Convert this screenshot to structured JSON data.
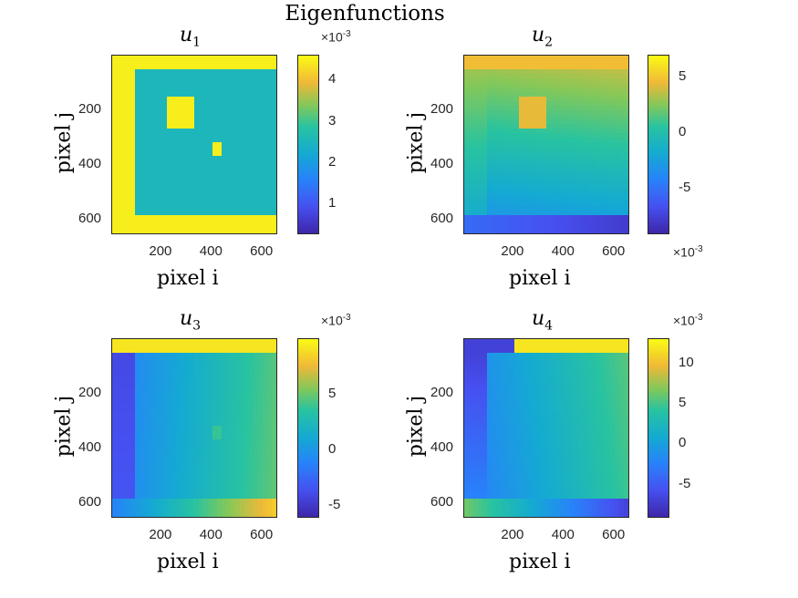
{
  "chart_data": {
    "title": "Eigenfunctions",
    "panels": [
      {
        "type": "heatmap",
        "title": "u",
        "subscript": "1",
        "xlabel": "pixel i",
        "ylabel": "pixel j",
        "xticks": [
          "200",
          "400",
          "600"
        ],
        "yticks": [
          "200",
          "400",
          "600"
        ],
        "xlim": [
          0,
          650
        ],
        "ylim": [
          0,
          650
        ],
        "colorbar_exponent": "×10",
        "colorbar_exponent_power": "-3",
        "colorbar_ticks": [
          "1",
          "2",
          "3",
          "4"
        ],
        "clim": [
          0.3,
          4.6
        ]
      },
      {
        "type": "heatmap",
        "title": "u",
        "subscript": "2",
        "xlabel": "pixel i",
        "ylabel": "pixel j",
        "xticks": [
          "200",
          "400",
          "600"
        ],
        "yticks": [
          "200",
          "400",
          "600"
        ],
        "xlim": [
          0,
          650
        ],
        "ylim": [
          0,
          650
        ],
        "colorbar_exponent": "×10",
        "colorbar_exponent_power": "-3",
        "colorbar_ticks": [
          "5",
          "0",
          "-5"
        ],
        "clim": [
          -9,
          7
        ]
      },
      {
        "type": "heatmap",
        "title": "u",
        "subscript": "3",
        "xlabel": "pixel i",
        "ylabel": "pixel j",
        "xticks": [
          "200",
          "400",
          "600"
        ],
        "yticks": [
          "200",
          "400",
          "600"
        ],
        "xlim": [
          0,
          650
        ],
        "ylim": [
          0,
          650
        ],
        "colorbar_exponent": "×10",
        "colorbar_exponent_power": "-3",
        "colorbar_ticks": [
          "5",
          "0",
          "-5"
        ],
        "clim": [
          -6,
          10
        ]
      },
      {
        "type": "heatmap",
        "title": "u",
        "subscript": "4",
        "xlabel": "pixel i",
        "ylabel": "pixel j",
        "xticks": [
          "200",
          "400",
          "600"
        ],
        "yticks": [
          "200",
          "400",
          "600"
        ],
        "xlim": [
          0,
          650
        ],
        "ylim": [
          0,
          650
        ],
        "colorbar_exponent": "×10",
        "colorbar_exponent_power": "-3",
        "colorbar_ticks": [
          "10",
          "5",
          "0",
          "-5"
        ],
        "clim": [
          -9,
          13
        ]
      }
    ]
  },
  "colors": {
    "parula_low": "#3e26a8",
    "parula_mid": "#13beb8",
    "parula_high": "#f9fb15"
  }
}
